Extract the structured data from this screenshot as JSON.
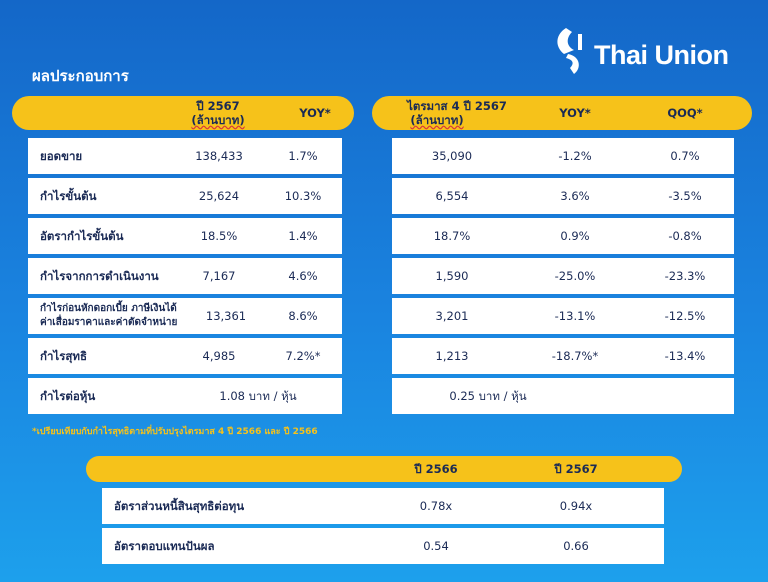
{
  "title": "ผลประกอบการ",
  "logo": {
    "text": "Thai Union",
    "color": "#1a84e0"
  },
  "left_table": {
    "header": {
      "col1_line1": "ปี 2567",
      "col1_line2": "(ล้านบาท)",
      "col2": "YOY*"
    },
    "rows": [
      {
        "label": "ยอดขาย",
        "v1": "138,433",
        "v2": "1.7%"
      },
      {
        "label": "กำไรขั้นต้น",
        "v1": "25,624",
        "v2": "10.3%"
      },
      {
        "label": "อัตรากำไรขั้นต้น",
        "v1": "18.5%",
        "v2": "1.4%"
      },
      {
        "label": "กำไรจากการดำเนินงาน",
        "v1": "7,167",
        "v2": "4.6%"
      },
      {
        "label_line1": "กำไรก่อนหักดอกเบี้ย ภาษีเงินได้",
        "label_line2": "ค่าเสื่อมราคาและค่าตัดจำหน่าย",
        "v1": "13,361",
        "v2": "8.6%"
      },
      {
        "label": "กำไรสุทธิ",
        "v1": "4,985",
        "v2": "7.2%*"
      },
      {
        "label": "กำไรต่อหุ้น",
        "v1": "1.08 บาท / หุ้น"
      }
    ]
  },
  "right_table": {
    "header": {
      "col1_line1": "ไตรมาส 4 ปี 2567",
      "col1_line2": "(ล้านบาท)",
      "col2": "YOY*",
      "col3": "QOQ*"
    },
    "rows": [
      {
        "v1": "35,090",
        "v2": "-1.2%",
        "v3": "0.7%"
      },
      {
        "v1": "6,554",
        "v2": "3.6%",
        "v3": "-3.5%"
      },
      {
        "v1": "18.7%",
        "v2": "0.9%",
        "v3": "-0.8%"
      },
      {
        "v1": "1,590",
        "v2": "-25.0%",
        "v3": "-23.3%"
      },
      {
        "v1": "3,201",
        "v2": "-13.1%",
        "v3": "-12.5%"
      },
      {
        "v1": "1,213",
        "v2": "-18.7%*",
        "v3": "-13.4%"
      },
      {
        "v1": "0.25 บาท / หุ้น"
      }
    ]
  },
  "footnote": "*เปรียบเทียบกับกำไรสุทธิตามที่ปรับปรุงไตรมาส 4 ปี 2566 และ ปี 2566",
  "bottom_table": {
    "header": {
      "col1": "ปี 2566",
      "col2": "ปี 2567"
    },
    "rows": [
      {
        "label": "อัตราส่วนหนี้สินสุทธิต่อทุน",
        "v1": "0.78x",
        "v2": "0.94x"
      },
      {
        "label": "อัตราตอบแทนปันผล",
        "v1": "0.54",
        "v2": "0.66"
      }
    ]
  }
}
